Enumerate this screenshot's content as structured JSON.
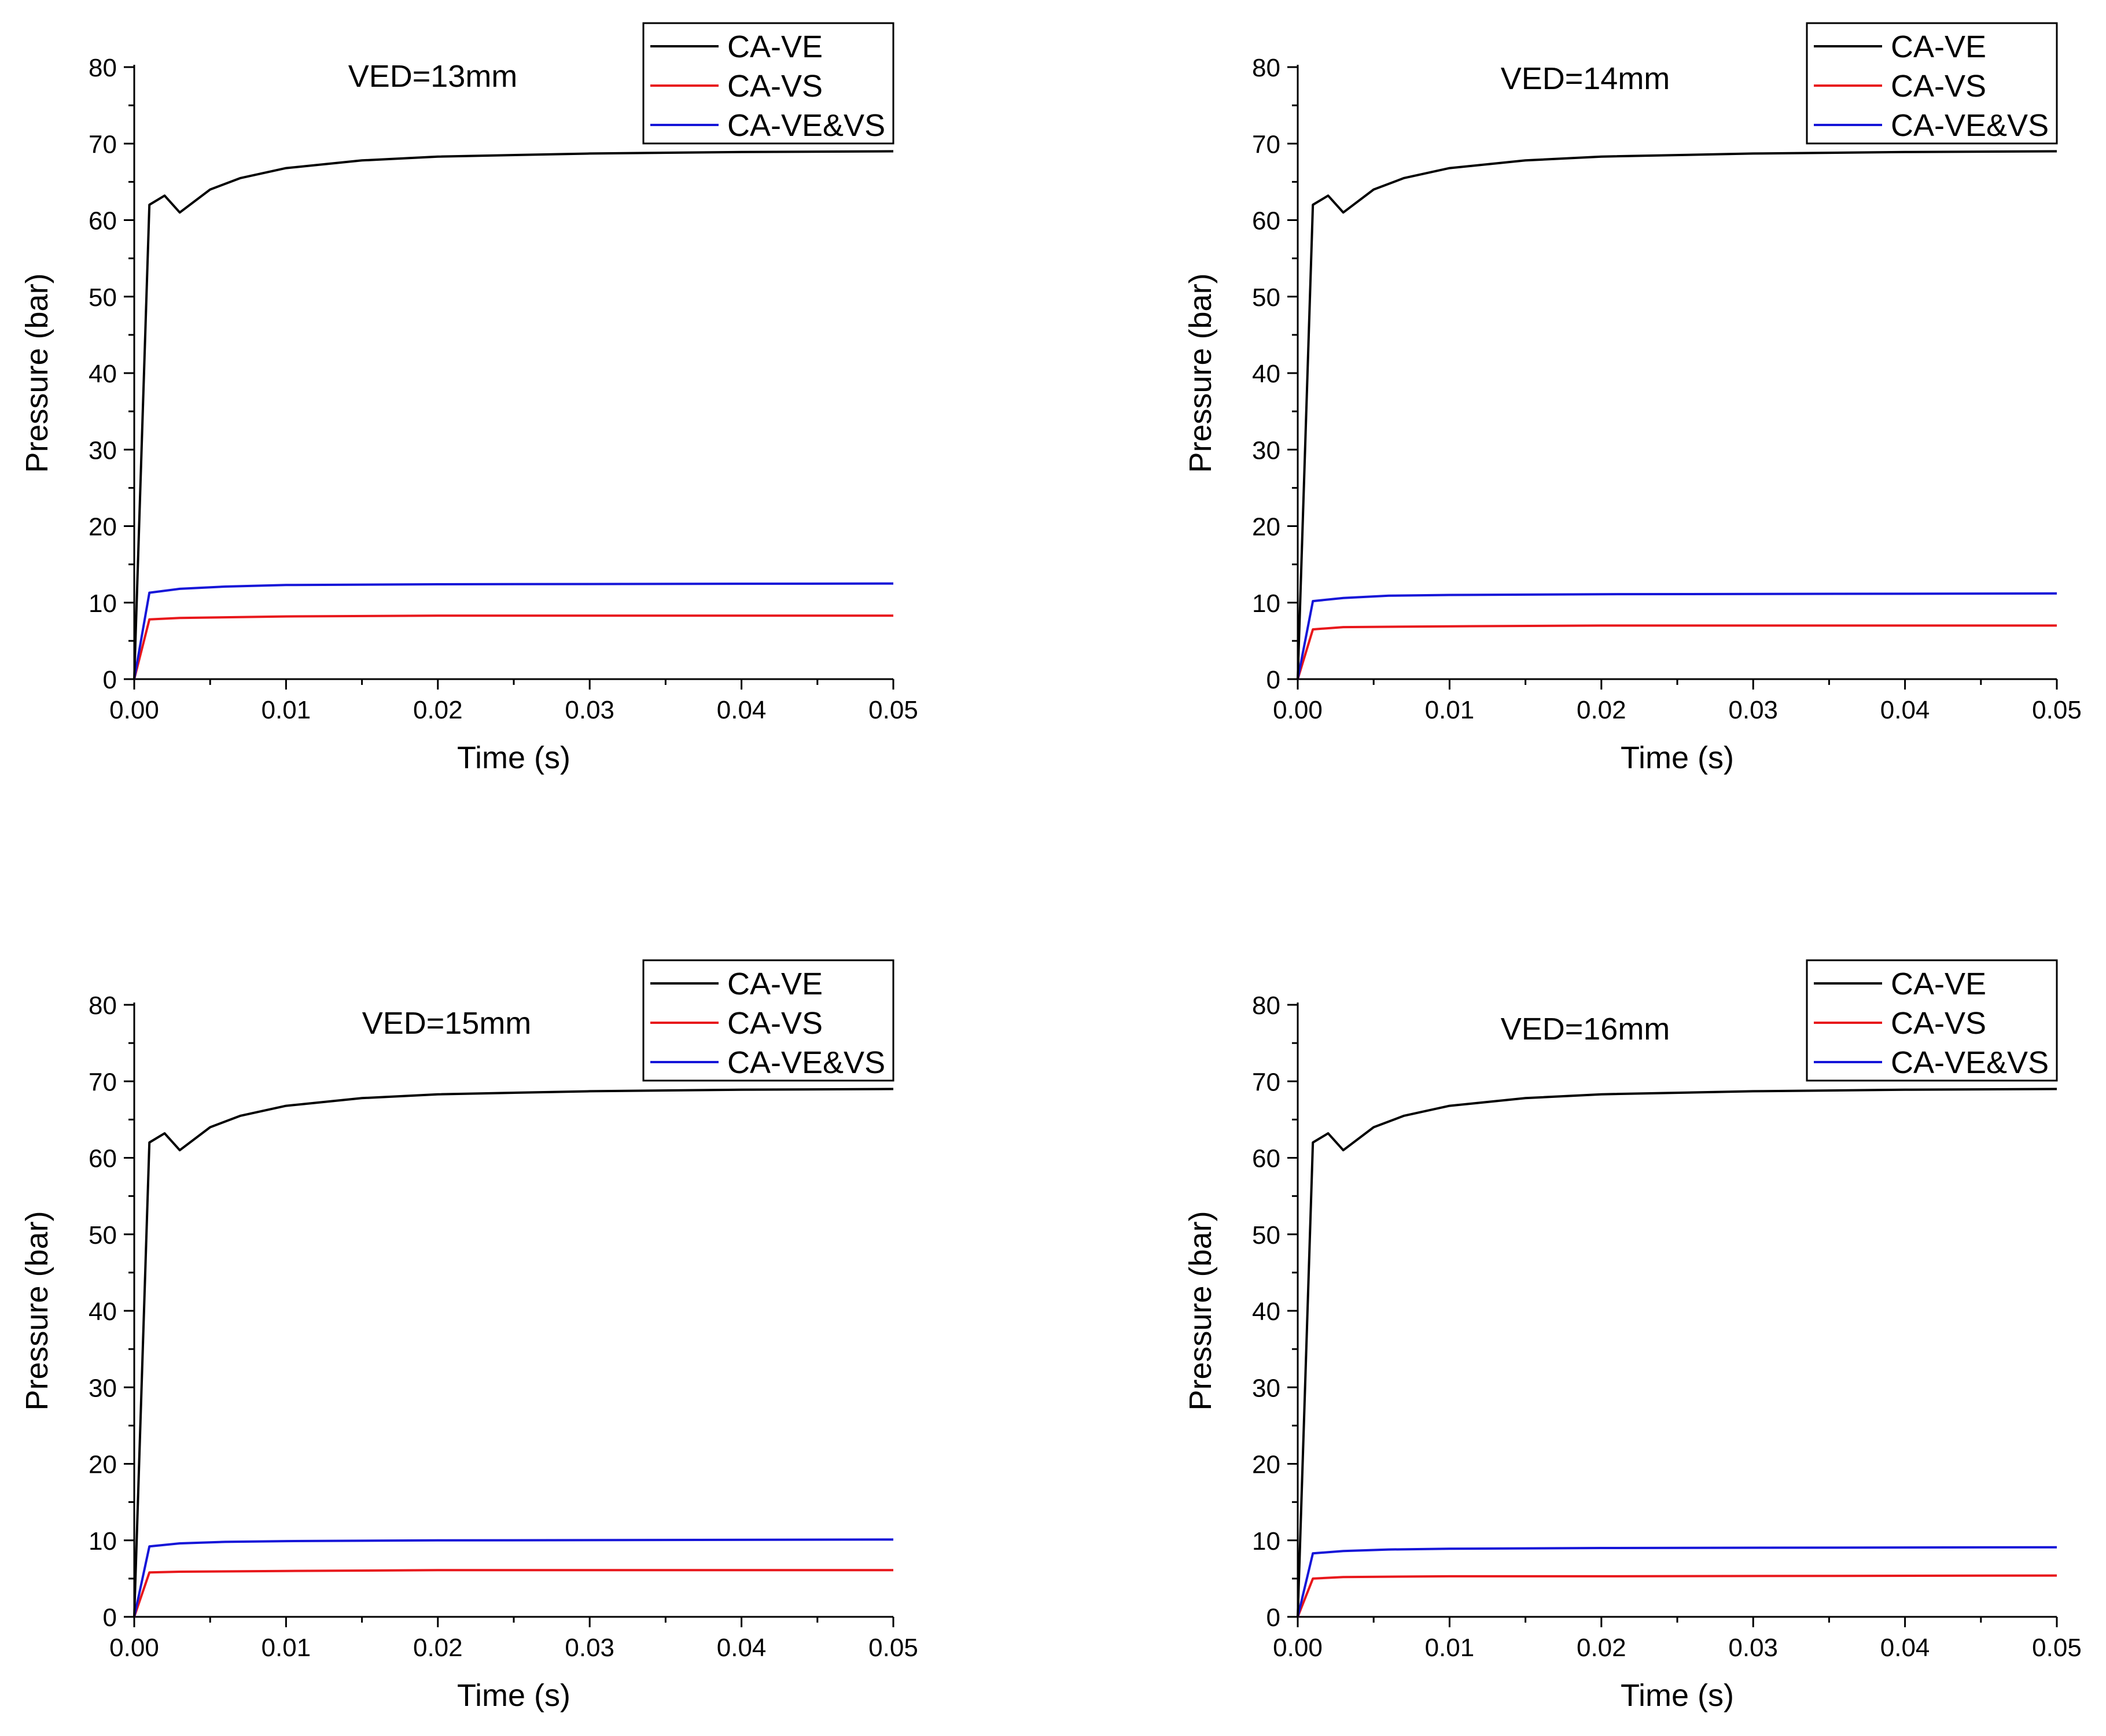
{
  "figure": {
    "background": "#ffffff",
    "series_colors": {
      "CA-VE": "#000000",
      "CA-VS": "#e8171b",
      "CA-VE&VS": "#1515d8"
    }
  },
  "chart_data": [
    {
      "type": "line",
      "title": "VED=13mm",
      "xlabel": "Time (s)",
      "ylabel": "Pressure (bar)",
      "xlim": [
        0,
        0.05
      ],
      "ylim": [
        0,
        80
      ],
      "x_ticks": [
        "0.00",
        "0.01",
        "0.02",
        "0.03",
        "0.04",
        "0.05"
      ],
      "y_ticks": [
        "0",
        "10",
        "20",
        "30",
        "40",
        "50",
        "60",
        "70",
        "80"
      ],
      "legend_position": "top-right",
      "series": [
        {
          "name": "CA-VE",
          "x": [
            0,
            0.001,
            0.002,
            0.003,
            0.005,
            0.007,
            0.01,
            0.015,
            0.02,
            0.03,
            0.04,
            0.05
          ],
          "y": [
            0,
            62.0,
            63.2,
            61.0,
            64.0,
            65.5,
            66.8,
            67.8,
            68.3,
            68.7,
            68.9,
            69.0
          ]
        },
        {
          "name": "CA-VS",
          "x": [
            0,
            0.001,
            0.003,
            0.01,
            0.02,
            0.05
          ],
          "y": [
            0,
            7.8,
            8.0,
            8.2,
            8.3,
            8.3
          ]
        },
        {
          "name": "CA-VE&VS",
          "x": [
            0,
            0.001,
            0.003,
            0.006,
            0.01,
            0.02,
            0.05
          ],
          "y": [
            0,
            11.3,
            11.8,
            12.1,
            12.3,
            12.4,
            12.5
          ]
        }
      ]
    },
    {
      "type": "line",
      "title": "VED=14mm",
      "xlabel": "Time (s)",
      "ylabel": "Pressure (bar)",
      "xlim": [
        0,
        0.05
      ],
      "ylim": [
        0,
        80
      ],
      "x_ticks": [
        "0.00",
        "0.01",
        "0.02",
        "0.03",
        "0.04",
        "0.05"
      ],
      "y_ticks": [
        "0",
        "10",
        "20",
        "30",
        "40",
        "50",
        "60",
        "70",
        "80"
      ],
      "legend_position": "top-right",
      "series": [
        {
          "name": "CA-VE",
          "x": [
            0,
            0.001,
            0.002,
            0.003,
            0.005,
            0.007,
            0.01,
            0.015,
            0.02,
            0.03,
            0.04,
            0.05
          ],
          "y": [
            0,
            62.0,
            63.2,
            61.0,
            64.0,
            65.5,
            66.8,
            67.8,
            68.3,
            68.7,
            68.9,
            69.0
          ]
        },
        {
          "name": "CA-VS",
          "x": [
            0,
            0.001,
            0.003,
            0.01,
            0.02,
            0.05
          ],
          "y": [
            0,
            6.5,
            6.8,
            6.9,
            7.0,
            7.0
          ]
        },
        {
          "name": "CA-VE&VS",
          "x": [
            0,
            0.001,
            0.003,
            0.006,
            0.01,
            0.02,
            0.05
          ],
          "y": [
            0,
            10.2,
            10.6,
            10.9,
            11.0,
            11.1,
            11.2
          ]
        }
      ]
    },
    {
      "type": "line",
      "title": "VED=15mm",
      "xlabel": "Time (s)",
      "ylabel": "Pressure (bar)",
      "xlim": [
        0,
        0.05
      ],
      "ylim": [
        0,
        80
      ],
      "x_ticks": [
        "0.00",
        "0.01",
        "0.02",
        "0.03",
        "0.04",
        "0.05"
      ],
      "y_ticks": [
        "0",
        "10",
        "20",
        "30",
        "40",
        "50",
        "60",
        "70",
        "80"
      ],
      "legend_position": "top-right",
      "series": [
        {
          "name": "CA-VE",
          "x": [
            0,
            0.001,
            0.002,
            0.003,
            0.005,
            0.007,
            0.01,
            0.015,
            0.02,
            0.03,
            0.04,
            0.05
          ],
          "y": [
            0,
            62.0,
            63.2,
            61.0,
            64.0,
            65.5,
            66.8,
            67.8,
            68.3,
            68.7,
            68.9,
            69.0
          ]
        },
        {
          "name": "CA-VS",
          "x": [
            0,
            0.001,
            0.003,
            0.01,
            0.02,
            0.05
          ],
          "y": [
            0,
            5.8,
            5.9,
            6.0,
            6.1,
            6.1
          ]
        },
        {
          "name": "CA-VE&VS",
          "x": [
            0,
            0.001,
            0.003,
            0.006,
            0.01,
            0.02,
            0.05
          ],
          "y": [
            0,
            9.2,
            9.6,
            9.8,
            9.9,
            10.0,
            10.1
          ]
        }
      ]
    },
    {
      "type": "line",
      "title": "VED=16mm",
      "xlabel": "Time (s)",
      "ylabel": "Pressure (bar)",
      "xlim": [
        0,
        0.05
      ],
      "ylim": [
        0,
        80
      ],
      "x_ticks": [
        "0.00",
        "0.01",
        "0.02",
        "0.03",
        "0.04",
        "0.05"
      ],
      "y_ticks": [
        "0",
        "10",
        "20",
        "30",
        "40",
        "50",
        "60",
        "70",
        "80"
      ],
      "legend_position": "top-right",
      "series": [
        {
          "name": "CA-VE",
          "x": [
            0,
            0.001,
            0.002,
            0.003,
            0.005,
            0.007,
            0.01,
            0.015,
            0.02,
            0.03,
            0.04,
            0.05
          ],
          "y": [
            0,
            62.0,
            63.2,
            61.0,
            64.0,
            65.5,
            66.8,
            67.8,
            68.3,
            68.7,
            68.9,
            69.0
          ]
        },
        {
          "name": "CA-VS",
          "x": [
            0,
            0.001,
            0.003,
            0.01,
            0.02,
            0.05
          ],
          "y": [
            0,
            5.0,
            5.2,
            5.3,
            5.3,
            5.4
          ]
        },
        {
          "name": "CA-VE&VS",
          "x": [
            0,
            0.001,
            0.003,
            0.006,
            0.01,
            0.02,
            0.05
          ],
          "y": [
            0,
            8.3,
            8.6,
            8.8,
            8.9,
            9.0,
            9.1
          ]
        }
      ]
    }
  ]
}
